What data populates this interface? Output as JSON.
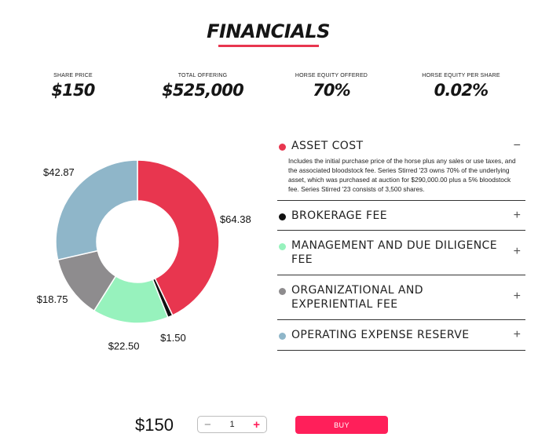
{
  "section": {
    "title": "FINANCIALS",
    "accent": "#e8364f"
  },
  "stats": [
    {
      "label": "SHARE PRICE",
      "value": "$150"
    },
    {
      "label": "TOTAL OFFERING",
      "value": "$525,000"
    },
    {
      "label": "HORSE EQUITY OFFERED",
      "value": "70%"
    },
    {
      "label": "HORSE EQUITY PER SHARE",
      "value": "0.02%"
    }
  ],
  "chart_data": {
    "type": "pie",
    "donut": true,
    "categories": [
      "Asset Cost",
      "Brokerage Fee",
      "Management and Due Diligence Fee",
      "Organizational and Experiential Fee",
      "Operating Expense Reserve"
    ],
    "values": [
      64.38,
      1.5,
      22.5,
      18.75,
      42.87
    ],
    "data_labels": [
      "$64.38",
      "$1.50",
      "$22.50",
      "$18.75",
      "$42.87"
    ],
    "colors": [
      "#e8364f",
      "#111111",
      "#97f2bd",
      "#8e8c8e",
      "#8fb6c9"
    ],
    "legend": "none"
  },
  "accordion": [
    {
      "title": "ASSET COST",
      "color": "#e8364f",
      "expanded": true,
      "toggle": "−",
      "body": "Includes the initial purchase price of the horse plus any sales or use taxes, and the associated bloodstock fee. Series Stirred '23 owns 70% of the underlying asset, which was purchased at auction for $290,000.00 plus a 5% bloodstock fee. Series Stirred '23 consists of 3,500 shares."
    },
    {
      "title": "BROKERAGE FEE",
      "color": "#111111",
      "expanded": false,
      "toggle": "+"
    },
    {
      "title": "MANAGEMENT AND DUE DILIGENCE FEE",
      "color": "#97f2bd",
      "expanded": false,
      "toggle": "+"
    },
    {
      "title": "ORGANIZATIONAL AND EXPERIENTIAL FEE",
      "color": "#8e8c8e",
      "expanded": false,
      "toggle": "+"
    },
    {
      "title": "OPERATING EXPENSE RESERVE",
      "color": "#8fb6c9",
      "expanded": false,
      "toggle": "+"
    }
  ],
  "purchase": {
    "price": "$150",
    "quantity": "1",
    "minus": "−",
    "plus": "+",
    "buy_label": "BUY",
    "buy_color": "#ff1f5a"
  }
}
